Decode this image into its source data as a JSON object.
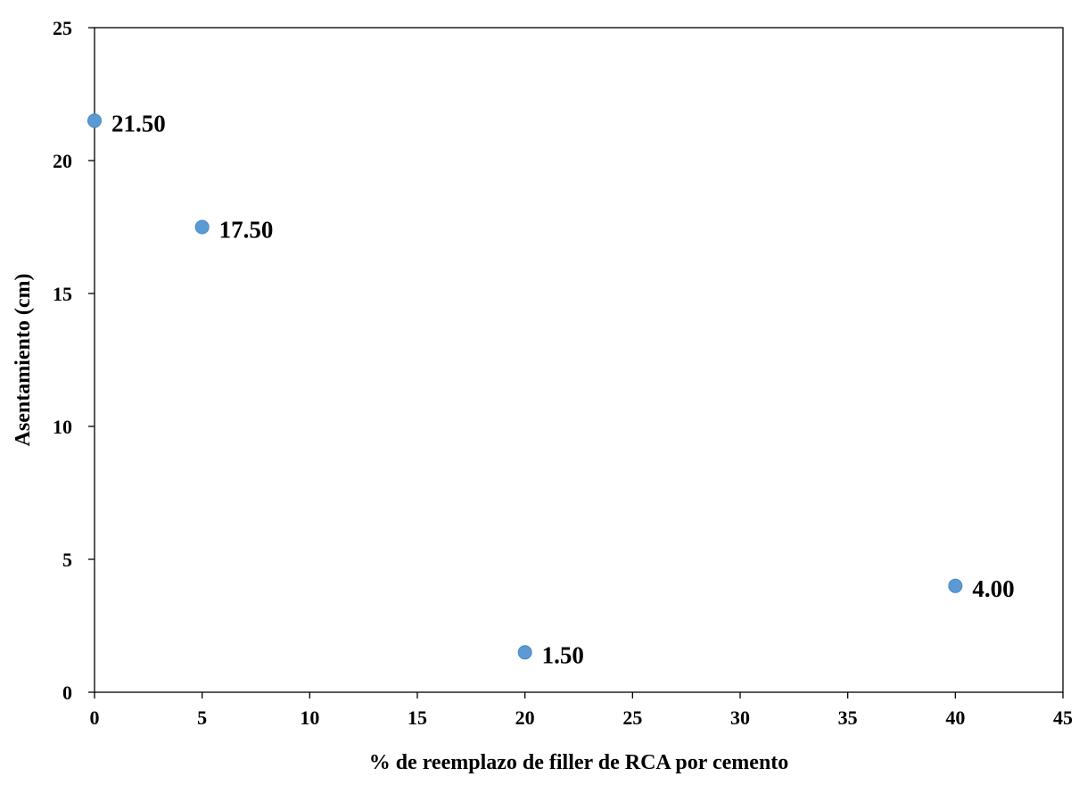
{
  "chart_data": {
    "type": "scatter",
    "title": "",
    "xlabel": "% de reemplazo de filler  de RCA por cemento",
    "ylabel": "Asentamiento (cm)",
    "xlim": [
      0,
      45
    ],
    "ylim": [
      0,
      25
    ],
    "x_ticks": [
      0,
      5,
      10,
      15,
      20,
      25,
      30,
      35,
      40,
      45
    ],
    "y_ticks": [
      0,
      5,
      10,
      15,
      20,
      25
    ],
    "grid": false,
    "legend": "none",
    "series": [
      {
        "color": "#5b9bd5",
        "points": [
          {
            "x": 0,
            "y": 21.5,
            "label": "21.50"
          },
          {
            "x": 5,
            "y": 17.5,
            "label": "17.50"
          },
          {
            "x": 20,
            "y": 1.5,
            "label": "1.50"
          },
          {
            "x": 40,
            "y": 4.0,
            "label": "4.00"
          }
        ]
      }
    ]
  }
}
